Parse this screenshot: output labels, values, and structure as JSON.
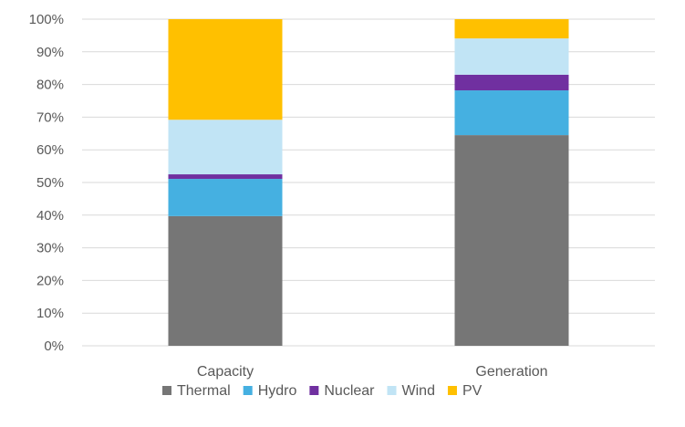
{
  "chart_data": {
    "type": "bar",
    "stacked": true,
    "percent": true,
    "categories": [
      "Capacity",
      "Generation"
    ],
    "series": [
      {
        "name": "Thermal",
        "color": "#767676",
        "values": [
          39.7,
          64.5
        ]
      },
      {
        "name": "Hydro",
        "color": "#45B0E1",
        "values": [
          11.4,
          13.7
        ]
      },
      {
        "name": "Nuclear",
        "color": "#7030A0",
        "values": [
          1.4,
          4.8
        ]
      },
      {
        "name": "Wind",
        "color": "#C1E4F5",
        "values": [
          16.7,
          11.1
        ]
      },
      {
        "name": "PV",
        "color": "#FFC000",
        "values": [
          30.8,
          5.9
        ]
      }
    ],
    "ylim": [
      0,
      100
    ],
    "yticks": [
      "0%",
      "10%",
      "20%",
      "30%",
      "40%",
      "50%",
      "60%",
      "70%",
      "80%",
      "90%",
      "100%"
    ],
    "grid": true,
    "legend": "bottom"
  }
}
